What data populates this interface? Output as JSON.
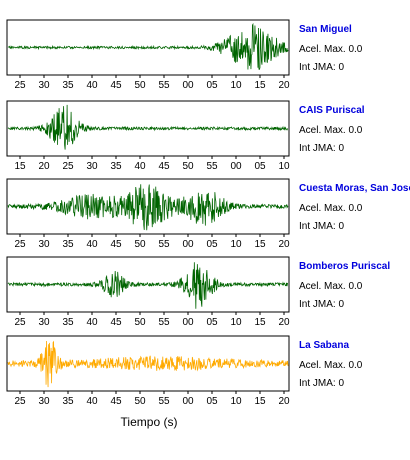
{
  "chart_data": {
    "type": "line",
    "xlabel": "Tiempo (s)",
    "panels": [
      {
        "station": "San Miguel",
        "acel_label": "Acel. Max. 0.0",
        "jma_label": "Int JMA: 0",
        "color": "#006400",
        "ticks": [
          "25",
          "30",
          "35",
          "40",
          "45",
          "50",
          "55",
          "00",
          "05",
          "10",
          "15",
          "20"
        ],
        "burst_centers": [
          0.87
        ],
        "burst_widths": [
          0.09
        ],
        "burst_amps": [
          0.95
        ],
        "noise": 0.05,
        "seed": 11
      },
      {
        "station": "CAIS Puriscal",
        "acel_label": "Acel. Max. 0.0",
        "jma_label": "Int JMA: 0",
        "color": "#006400",
        "ticks": [
          "15",
          "20",
          "25",
          "30",
          "35",
          "40",
          "45",
          "50",
          "55",
          "00",
          "05",
          "10"
        ],
        "burst_centers": [
          0.2
        ],
        "burst_widths": [
          0.05
        ],
        "burst_amps": [
          0.95
        ],
        "noise": 0.06,
        "seed": 23
      },
      {
        "station": "Cuesta Moras, San Jose",
        "acel_label": "Acel. Max. 0.0",
        "jma_label": "Int JMA: 0",
        "color": "#006400",
        "ticks": [
          "25",
          "30",
          "35",
          "40",
          "45",
          "50",
          "55",
          "00",
          "05",
          "10",
          "15",
          "20"
        ],
        "burst_centers": [
          0.3,
          0.5,
          0.7
        ],
        "burst_widths": [
          0.12,
          0.08,
          0.07
        ],
        "burst_amps": [
          0.45,
          0.9,
          0.75
        ],
        "noise": 0.08,
        "seed": 37
      },
      {
        "station": "Bomberos Puriscal",
        "acel_label": "Acel. Max. 0.0",
        "jma_label": "Int JMA: 0",
        "color": "#006400",
        "ticks": [
          "25",
          "30",
          "35",
          "40",
          "45",
          "50",
          "55",
          "00",
          "05",
          "10",
          "15",
          "20"
        ],
        "burst_centers": [
          0.38,
          0.68
        ],
        "burst_widths": [
          0.04,
          0.05
        ],
        "burst_amps": [
          0.5,
          0.95
        ],
        "noise": 0.07,
        "seed": 53
      },
      {
        "station": "La Sabana",
        "acel_label": "Acel. Max. 0.0",
        "jma_label": "Int JMA: 0",
        "color": "#ffaa00",
        "ticks": [
          "25",
          "30",
          "35",
          "40",
          "45",
          "50",
          "55",
          "00",
          "05",
          "10",
          "15",
          "20"
        ],
        "burst_centers": [
          0.15,
          0.55
        ],
        "burst_widths": [
          0.03,
          0.25
        ],
        "burst_amps": [
          0.95,
          0.2
        ],
        "noise": 0.12,
        "seed": 71
      }
    ]
  }
}
